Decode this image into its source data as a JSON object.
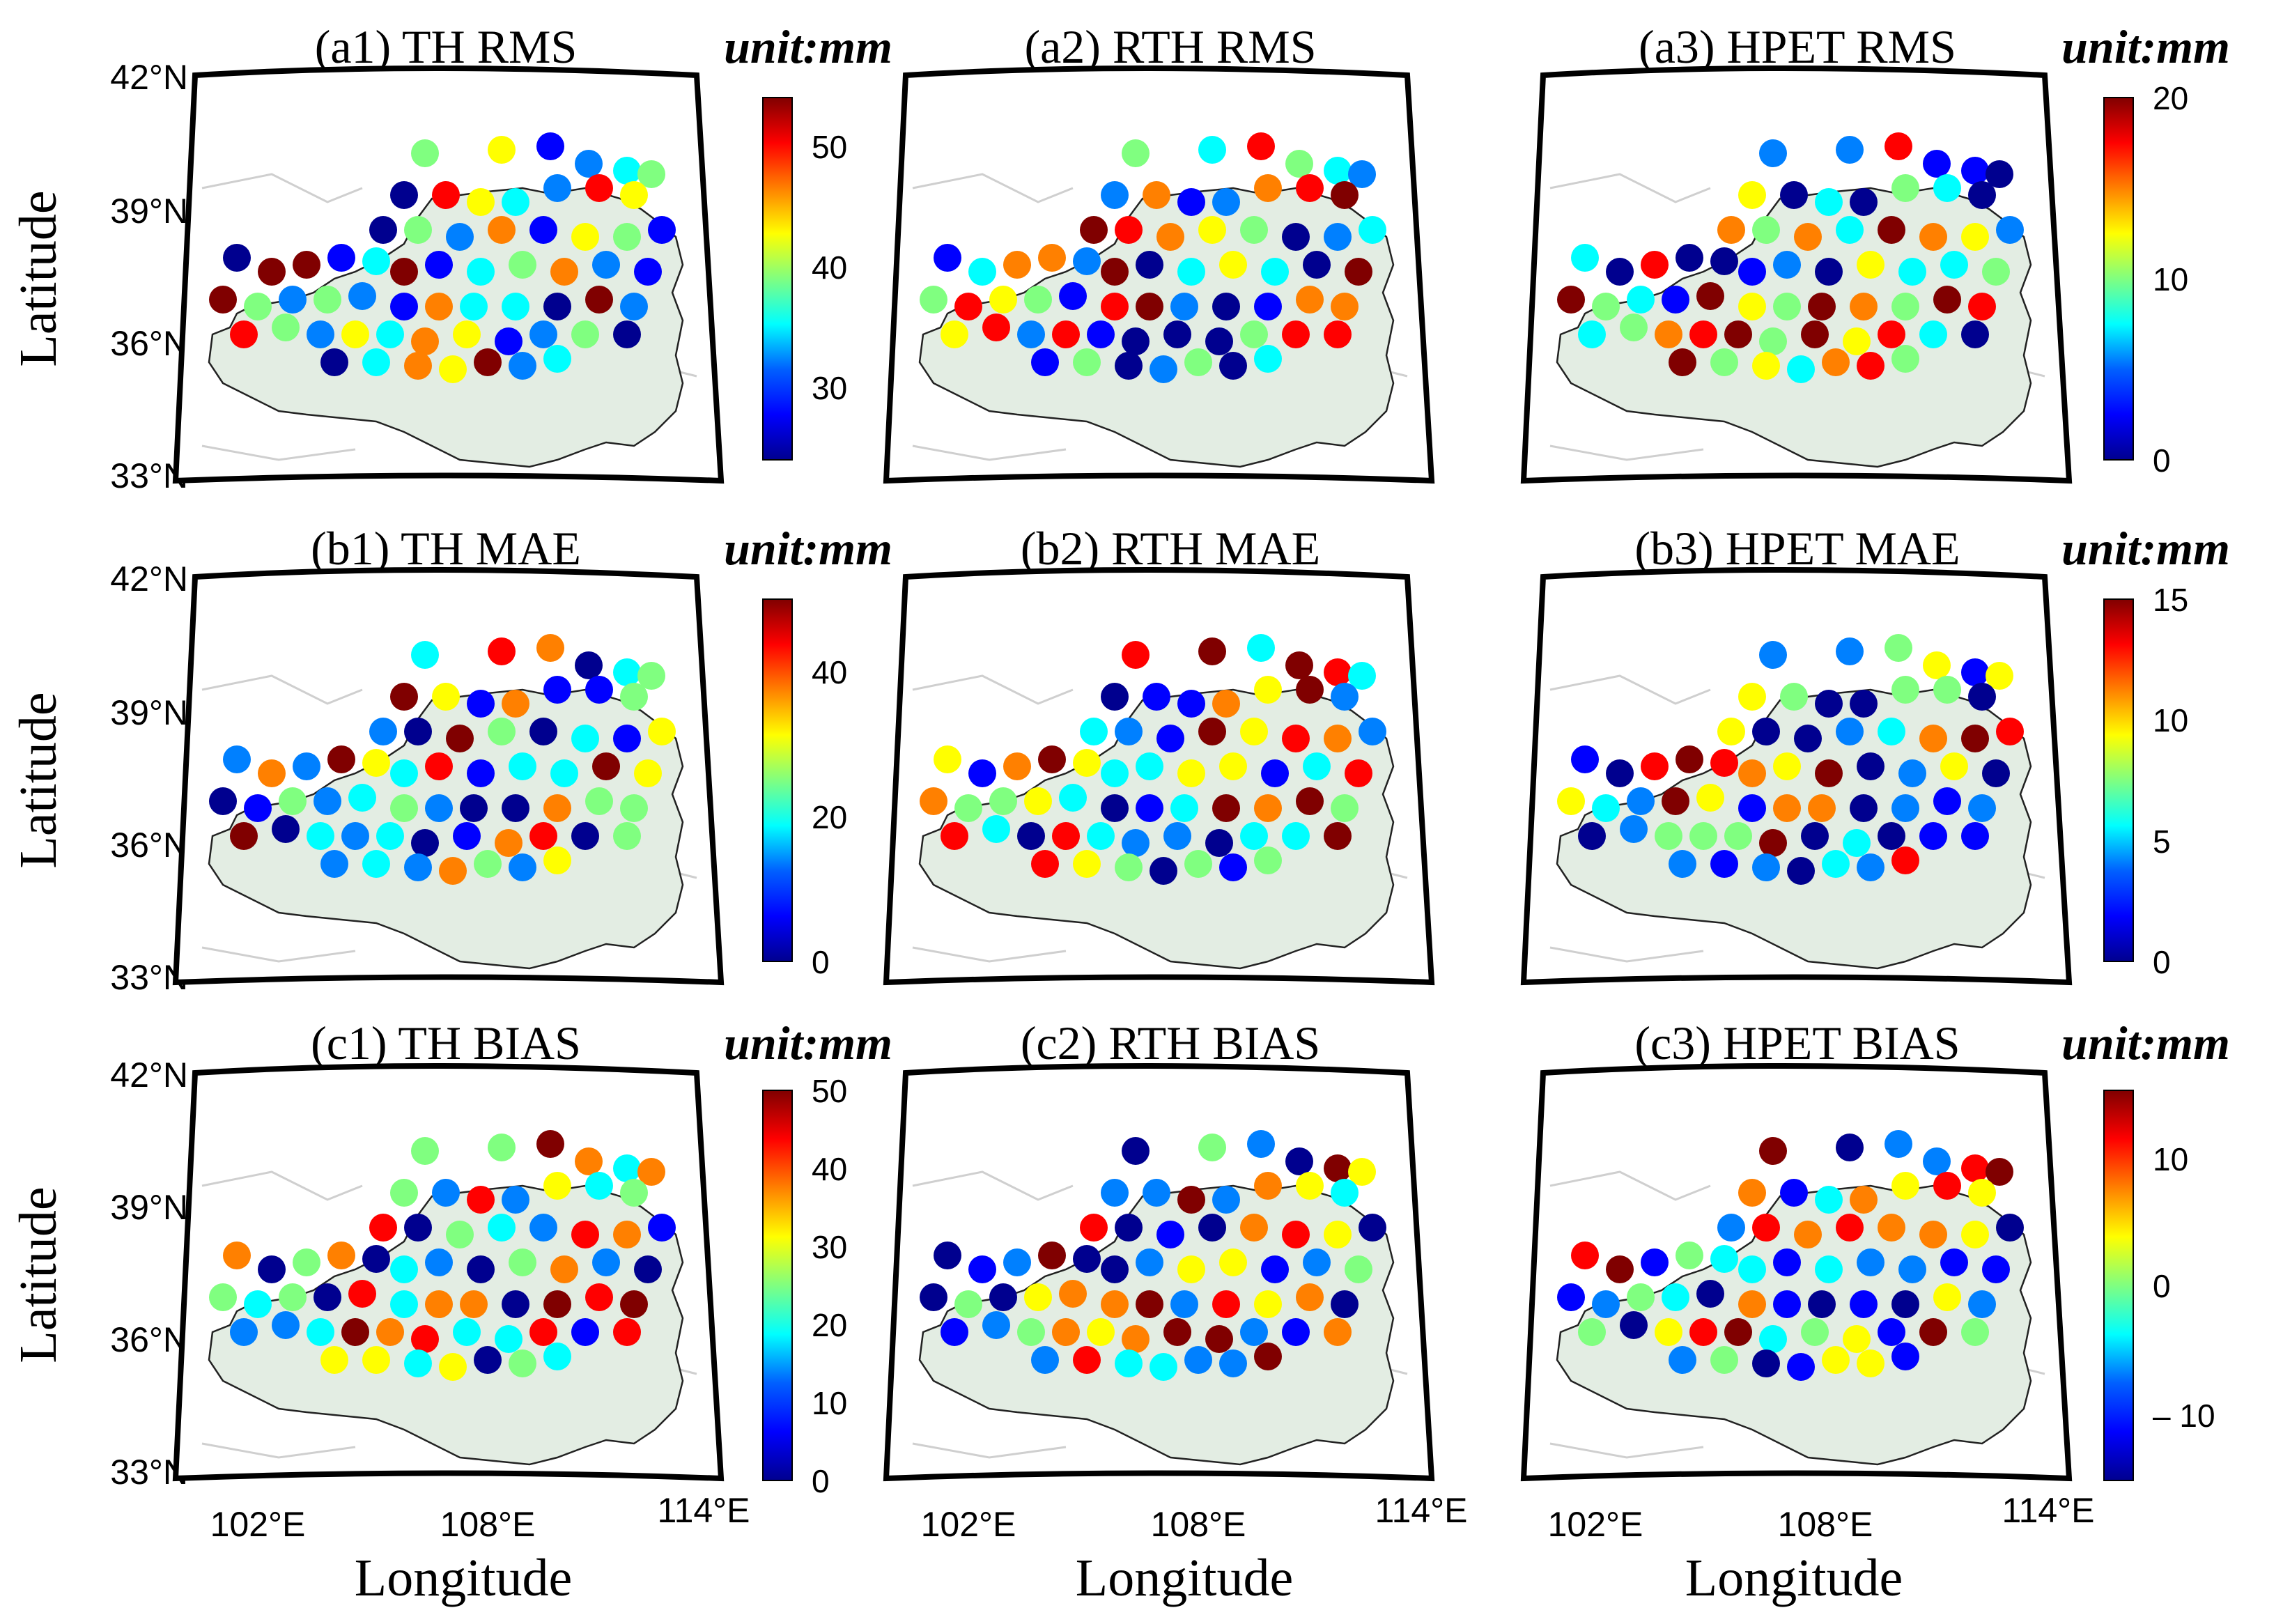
{
  "figure": {
    "axis_labels": {
      "latitude": "Latitude",
      "longitude": "Longitude"
    },
    "lat_ticks": [
      "42°N",
      "39°N",
      "36°N",
      "33°N"
    ],
    "lon_ticks": [
      "102°E",
      "108°E",
      "114°E"
    ]
  },
  "panels": [
    {
      "id": "a1",
      "title": "(a1) TH RMS",
      "unit_label": "unit:mm",
      "colorbar_ticks": [
        "50",
        "40",
        "30"
      ],
      "colorbar_range": [
        24,
        54
      ]
    },
    {
      "id": "a2",
      "title": "(a2) RTH RMS",
      "unit_label": ""
    },
    {
      "id": "a3",
      "title": "(a3) HPET RMS",
      "unit_label": "unit:mm",
      "colorbar_ticks": [
        "20",
        "10",
        "0"
      ],
      "colorbar_range": [
        0,
        20
      ]
    },
    {
      "id": "b1",
      "title": "(b1) TH MAE",
      "unit_label": "unit:mm",
      "colorbar_ticks": [
        "40",
        "20",
        "0"
      ],
      "colorbar_range": [
        0,
        50
      ]
    },
    {
      "id": "b2",
      "title": "(b2) RTH MAE",
      "unit_label": ""
    },
    {
      "id": "b3",
      "title": "(b3) HPET MAE",
      "unit_label": "unit:mm",
      "colorbar_ticks": [
        "15",
        "10",
        "5",
        "0"
      ],
      "colorbar_range": [
        0,
        15
      ]
    },
    {
      "id": "c1",
      "title": "(c1) TH BIAS",
      "unit_label": "unit:mm",
      "colorbar_ticks": [
        "50",
        "40",
        "30",
        "20",
        "10",
        "0"
      ],
      "colorbar_range": [
        0,
        50
      ]
    },
    {
      "id": "c2",
      "title": "(c2) RTH BIAS",
      "unit_label": ""
    },
    {
      "id": "c3",
      "title": "(c3) HPET BIAS",
      "unit_label": "unit:mm",
      "colorbar_ticks": [
        "10",
        "0",
        "– 10"
      ],
      "colorbar_range": [
        -15,
        15
      ]
    }
  ],
  "colors": {
    "plateau_fill": "#e3ede3",
    "colormap": [
      "#00008f",
      "#0000ff",
      "#0080ff",
      "#00ffff",
      "#80ff80",
      "#ffff00",
      "#ff8000",
      "#ff0000",
      "#800000"
    ]
  }
}
